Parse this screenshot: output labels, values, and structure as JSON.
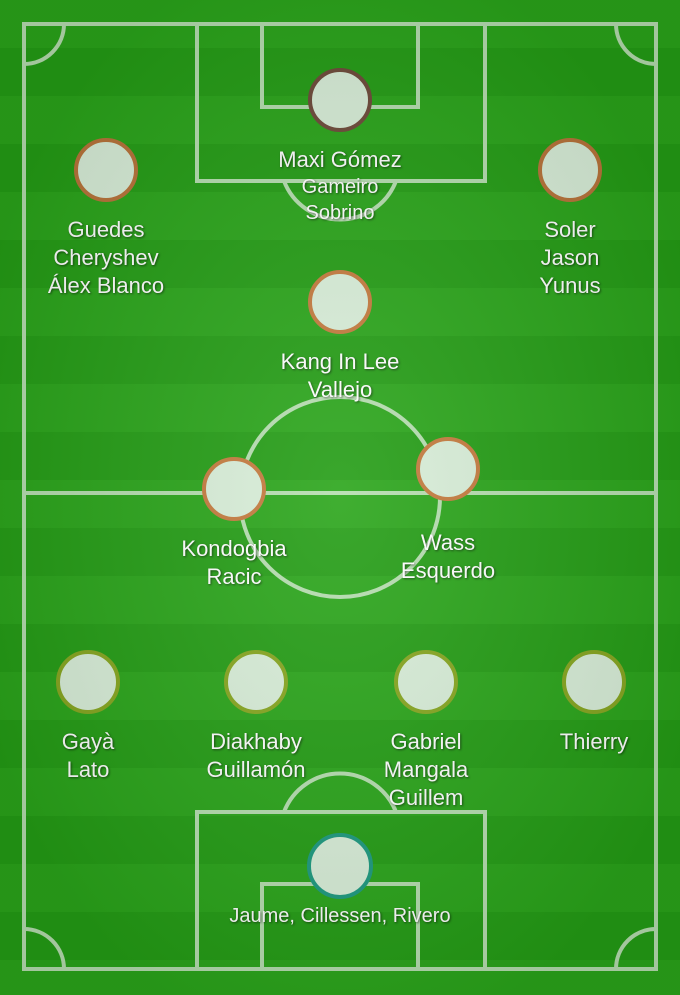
{
  "players": [
    {
      "id": "st",
      "names": [
        "Maxi Gómez",
        "Gameiro",
        "Sobrino"
      ]
    },
    {
      "id": "lw",
      "names": [
        "Guedes",
        "Cheryshev",
        "Álex Blanco"
      ]
    },
    {
      "id": "rw",
      "names": [
        "Soler",
        "Jason",
        "Yunus"
      ]
    },
    {
      "id": "cam",
      "names": [
        "Kang In Lee",
        "Vallejo"
      ]
    },
    {
      "id": "lcm",
      "names": [
        "Kondogbia",
        "Racic"
      ]
    },
    {
      "id": "rcm",
      "names": [
        "Wass",
        "Esquerdo"
      ]
    },
    {
      "id": "lb",
      "names": [
        "Gayà",
        "Lato"
      ]
    },
    {
      "id": "lcb",
      "names": [
        "Diakhaby",
        "Guillamón"
      ]
    },
    {
      "id": "rcb",
      "names": [
        "Gabriel",
        "Mangala",
        "Guillem"
      ]
    },
    {
      "id": "rb",
      "names": [
        "Thierry"
      ]
    },
    {
      "id": "gk",
      "names": [
        "Jaume, Cillessen, Rivero"
      ]
    }
  ],
  "colors": {
    "pitch_light": "#2aa51a",
    "pitch_dark": "#249d15",
    "line": "#b5ddaf",
    "dot_fill": "#d8eed8",
    "ring_attack": "#b87339",
    "ring_defense": "#86a61f",
    "ring_goalkeeper": "#1c9a7f"
  }
}
